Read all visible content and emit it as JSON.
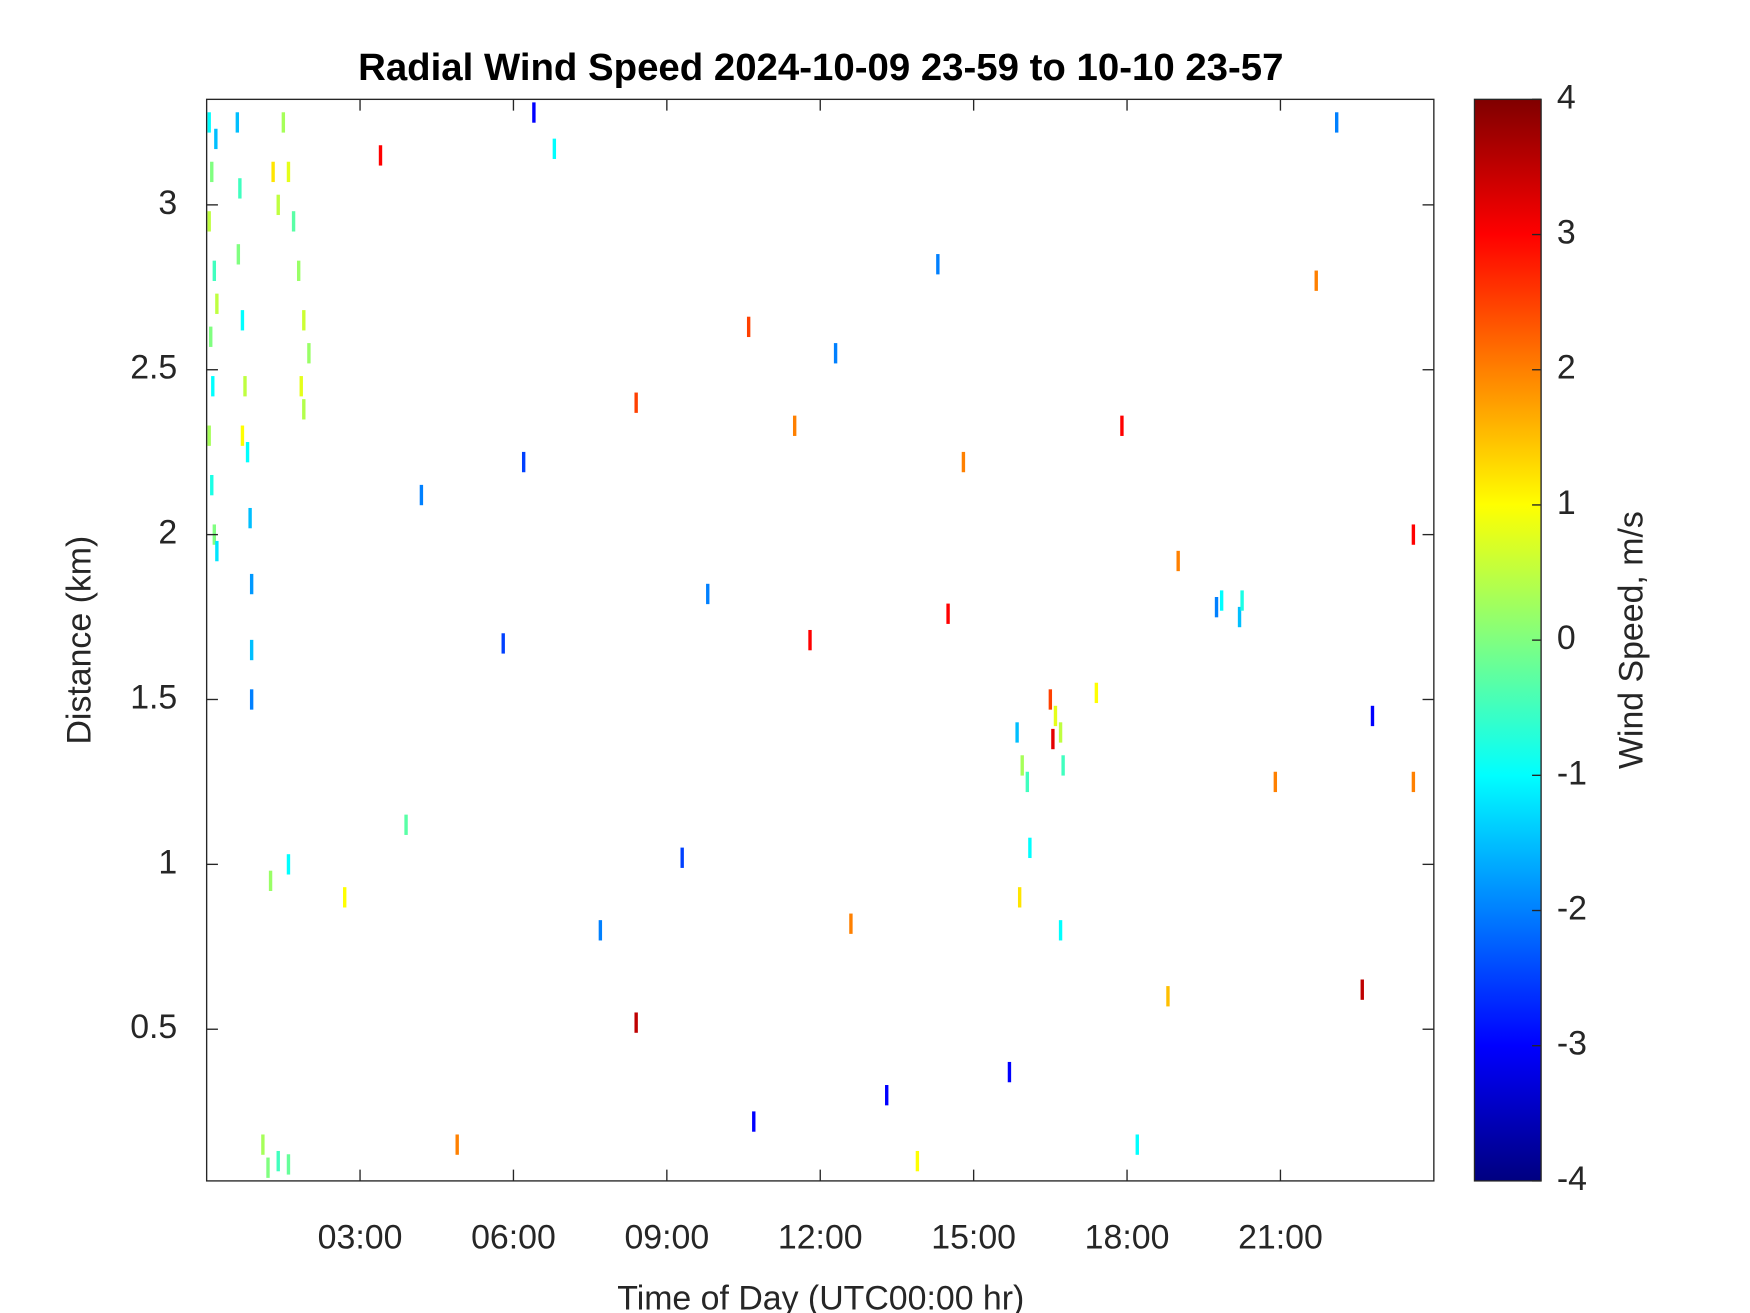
{
  "chart_data": {
    "type": "heatmap",
    "title": "Radial Wind Speed 2024-10-09 23-59 to 10-10 23-57",
    "x_label": "Time of Day (UTC00:00 hr)",
    "y_label": "Distance (km)",
    "colorbar_label": "Wind Speed, m/s",
    "colormap": "jet",
    "xlim": [
      0,
      24
    ],
    "ylim": [
      0.04,
      3.32
    ],
    "clim": [
      -4,
      4
    ],
    "xticks": [
      {
        "value": 3,
        "label": "03:00"
      },
      {
        "value": 6,
        "label": "06:00"
      },
      {
        "value": 9,
        "label": "09:00"
      },
      {
        "value": 12,
        "label": "12:00"
      },
      {
        "value": 15,
        "label": "15:00"
      },
      {
        "value": 18,
        "label": "18:00"
      },
      {
        "value": 21,
        "label": "21:00"
      }
    ],
    "yticks": [
      0.5,
      1,
      1.5,
      2,
      2.5,
      3
    ],
    "cticks": [
      -4,
      -3,
      -2,
      -1,
      0,
      1,
      2,
      3,
      4
    ],
    "x": [
      0.05,
      0.1,
      0.05,
      0.15,
      0.08,
      0.12,
      0.05,
      0.1,
      0.15,
      0.2,
      0.18,
      0.2,
      0.6,
      0.65,
      0.62,
      0.7,
      0.75,
      0.8,
      0.85,
      0.88,
      0.88,
      0.88,
      0.7,
      1.5,
      1.6,
      1.4,
      1.7,
      1.8,
      1.9,
      2.0,
      1.85,
      1.9,
      1.3,
      1.2,
      1.4,
      1.1,
      1.6,
      1.25,
      1.6,
      2.7,
      15.85,
      15.95,
      16.05,
      16.5,
      16.6,
      16.55,
      16.7,
      16.75,
      17.4,
      16.1,
      15.9,
      16.7,
      19.75,
      19.85,
      20.2,
      20.25,
      3.4,
      6.4,
      6.8,
      4.2,
      6.2,
      5.8,
      8.4,
      9.8,
      10.6,
      11.5,
      12.3,
      14.3,
      14.8,
      15.7,
      17.9,
      19.0,
      21.7,
      22.1,
      22.6,
      23.6,
      23.6,
      8.4,
      7.7,
      4.9,
      10.7,
      13.3,
      13.9,
      18.2,
      18.8,
      12.6,
      14.5,
      20.9,
      3.9,
      22.8,
      11.8,
      9.3
    ],
    "y": [
      3.25,
      3.1,
      2.95,
      2.8,
      2.6,
      2.45,
      2.3,
      2.15,
      2.0,
      1.95,
      3.2,
      2.7,
      3.25,
      3.05,
      2.85,
      2.65,
      2.45,
      2.25,
      2.05,
      1.85,
      1.65,
      1.5,
      2.3,
      3.25,
      3.1,
      3.0,
      2.95,
      2.8,
      2.65,
      2.55,
      2.45,
      2.38,
      3.1,
      0.08,
      0.1,
      0.15,
      0.09,
      0.95,
      1.0,
      0.9,
      1.4,
      1.3,
      1.25,
      1.5,
      1.45,
      1.38,
      1.4,
      1.3,
      1.52,
      1.05,
      0.9,
      0.8,
      1.78,
      1.8,
      1.75,
      1.8,
      3.15,
      3.28,
      3.17,
      2.12,
      2.22,
      1.67,
      0.52,
      1.82,
      2.63,
      2.33,
      2.55,
      2.82,
      2.22,
      0.37,
      2.33,
      1.92,
      2.77,
      3.25,
      0.62,
      1.25,
      2.0,
      2.4,
      0.8,
      0.15,
      0.22,
      0.3,
      0.1,
      0.15,
      0.6,
      0.82,
      1.76,
      1.25,
      1.12,
      1.45,
      1.68,
      1.02
    ],
    "values": [
      -1,
      0,
      0.5,
      -0.5,
      0,
      -1,
      0.3,
      -0.8,
      0,
      -1.2,
      -1.5,
      0.5,
      -1.5,
      -0.5,
      0,
      -1,
      0.5,
      -1,
      -1.5,
      -1.8,
      -1.5,
      -2,
      1,
      0.3,
      0.8,
      0.5,
      -0.3,
      0.2,
      0.6,
      0.2,
      0.8,
      0.4,
      1.2,
      0,
      -0.5,
      0.3,
      -0.2,
      0.2,
      -1,
      1,
      -1.5,
      0.3,
      -0.5,
      2.5,
      0.8,
      3.2,
      0.5,
      -0.5,
      1,
      -1,
      1.2,
      -1,
      -2,
      -1,
      -1.5,
      -0.8,
      3,
      -3,
      -1,
      -2,
      -2.5,
      -2.5,
      3.5,
      -2,
      2.5,
      2,
      -2,
      -2,
      2,
      -3,
      3,
      2,
      2,
      -2,
      3.5,
      2,
      3,
      2.5,
      -2,
      2,
      -3,
      -3,
      1,
      -1,
      1.5,
      2,
      3,
      2,
      -0.3,
      -3,
      3,
      -2.5
    ]
  }
}
